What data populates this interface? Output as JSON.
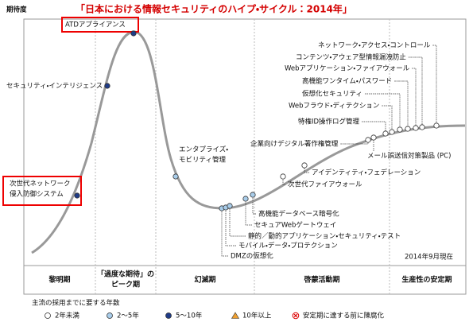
{
  "title": "「日本における情報セキュリティのハイプ・サイクル：2014年」",
  "y_axis_label": "期待度",
  "date_note": "2014年9月現在",
  "phases": [
    [
      "黎明期"
    ],
    [
      "「過度な期待」の",
      "ピーク期"
    ],
    [
      "幻滅期"
    ],
    [
      "啓蒙活動期"
    ],
    [
      "生産性の安定期"
    ]
  ],
  "technologies": [
    {
      "label": [
        "ATDアプライアンス"
      ]
    },
    {
      "label": [
        "セキュリティ・インテリジェンス"
      ]
    },
    {
      "label": [
        "次世代ネットワーク",
        "侵入防御システム"
      ]
    },
    {
      "label": [
        "エンタプライズ・",
        "モビリティ管理"
      ]
    },
    {
      "label": [
        "DMZの仮想化"
      ]
    },
    {
      "label": [
        "モバイル・データ・プロテクション"
      ]
    },
    {
      "label": [
        "静的／動的アプリケーション・セキュリティ・テスト"
      ]
    },
    {
      "label": [
        "セキュアWebゲートウェイ"
      ]
    },
    {
      "label": [
        "高機能データベース暗号化"
      ]
    },
    {
      "label": [
        "次世代ファイアウォール"
      ]
    },
    {
      "label": [
        "アイデンティティ・フェデレーション"
      ]
    },
    {
      "label": [
        "企業向けデジタル著作権管理"
      ]
    },
    {
      "label": [
        "メール誤送信対策製品 (PC)"
      ]
    },
    {
      "label": [
        "特権ID操作ログ管理"
      ]
    },
    {
      "label": [
        "Webフラウド・ディテクション"
      ]
    },
    {
      "label": [
        "仮想化セキュリティ"
      ]
    },
    {
      "label": [
        "高機能ワンタイム・パスワード"
      ]
    },
    {
      "label": [
        "Webアプリケーション・ファイアウォール"
      ]
    },
    {
      "label": [
        "コンテンツ・アウェア型情報漏洩防止"
      ]
    },
    {
      "label": [
        "ネットワーク・アクセス・コントロール"
      ]
    }
  ],
  "legend": {
    "title": "主流の採用までに要する年数",
    "items": [
      "2年未満",
      "2～5年",
      "5～10年",
      "10年以上",
      "安定期に達する前に陳腐化"
    ]
  }
}
